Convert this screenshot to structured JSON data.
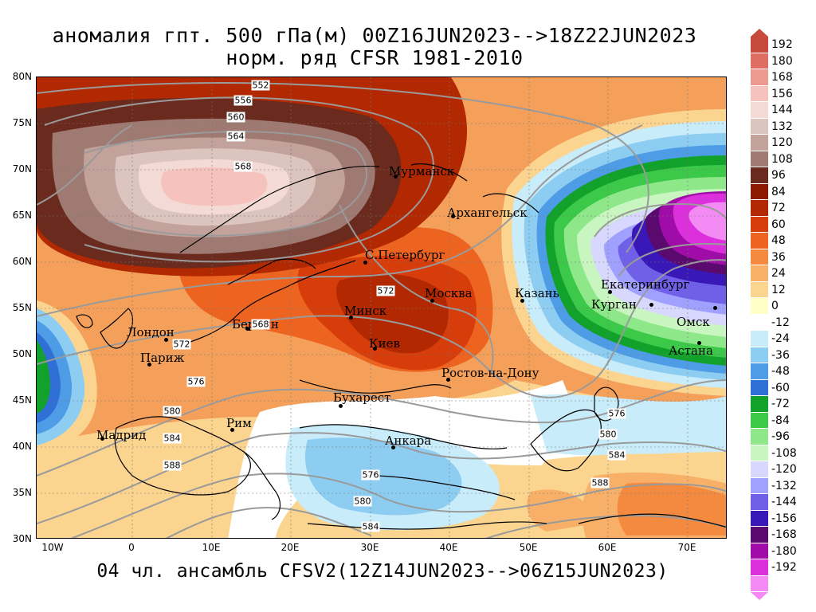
{
  "header": {
    "line1": "аномалия гпт. 500 гПа(м) 00Z16JUN2023-->18Z22JUN2023",
    "line2": "норм. ряд CFSR 1981-2010"
  },
  "footer": "04 чл. ансамбль CFSV2(12Z14JUN2023-->06Z15JUN2023)",
  "map": {
    "lat_labels": [
      "80N",
      "75N",
      "70N",
      "65N",
      "60N",
      "55N",
      "50N",
      "45N",
      "40N",
      "35N",
      "30N"
    ],
    "lon_labels": [
      "10W",
      "0",
      "10E",
      "20E",
      "30E",
      "40E",
      "50E",
      "60E",
      "70E"
    ],
    "cities": [
      {
        "name": "Мурманск"
      },
      {
        "name": "Архангельск"
      },
      {
        "name": "С.Петербург"
      },
      {
        "name": "Москва"
      },
      {
        "name": "Казань"
      },
      {
        "name": "Екатеринбург"
      },
      {
        "name": "Курган"
      },
      {
        "name": "Омск"
      },
      {
        "name": "Астана"
      },
      {
        "name": "Минск"
      },
      {
        "name": "Берлин"
      },
      {
        "name": "Лондон"
      },
      {
        "name": "Париж"
      },
      {
        "name": "Киев"
      },
      {
        "name": "Ростов-на-Дону"
      },
      {
        "name": "Бухарест"
      },
      {
        "name": "Рим"
      },
      {
        "name": "Мадрид"
      },
      {
        "name": "Анкара"
      }
    ],
    "contour_labels": [
      "552",
      "556",
      "560",
      "564",
      "568",
      "572",
      "568",
      "572",
      "576",
      "580",
      "584",
      "588",
      "576",
      "580",
      "584",
      "576",
      "580",
      "584",
      "588"
    ]
  },
  "colorbar": {
    "labels": [
      "192",
      "180",
      "168",
      "156",
      "144",
      "132",
      "120",
      "108",
      "96",
      "84",
      "72",
      "60",
      "48",
      "36",
      "24",
      "12",
      "0",
      "-12",
      "-24",
      "-36",
      "-48",
      "-60",
      "-72",
      "-84",
      "-96",
      "-108",
      "-120",
      "-132",
      "-144",
      "-156",
      "-168",
      "-180",
      "-192"
    ],
    "colors": [
      "#c74a3c",
      "#de6e62",
      "#ec9a90",
      "#f6c3bc",
      "#f4dad4",
      "#dcc4bf",
      "#c2a29b",
      "#9f7a72",
      "#6a2a1e",
      "#8c1a00",
      "#b22800",
      "#d63d0a",
      "#ec6420",
      "#f48a40",
      "#f8b068",
      "#fbd590",
      "#ffffc6",
      "#ffffff",
      "#c8ecfa",
      "#8ecdf2",
      "#4e9ce6",
      "#2f6fd6",
      "#12a12a",
      "#3cc94a",
      "#8ee88a",
      "#c8f5c0",
      "#d8d8ff",
      "#a0a0ff",
      "#7060e8",
      "#3a18b8",
      "#5a0a6e",
      "#a00ca8",
      "#dd30dd",
      "#f48af4"
    ]
  }
}
